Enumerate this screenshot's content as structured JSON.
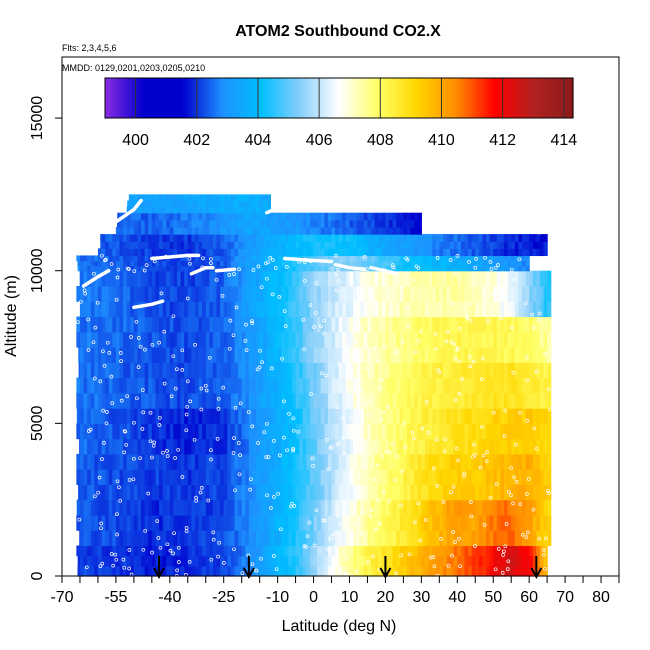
{
  "chart_data": {
    "type": "heatmap",
    "title": "ATOM2 Southbound CO2.X",
    "subtitle_flights": "Flts: 2,3,4,5,6",
    "subtitle_dates": "MMDD: 0129,0201,0203,0205,0210",
    "xlabel": "Latitude (deg N)",
    "ylabel": "Altitude (m)",
    "xlim": [
      -70,
      85
    ],
    "ylim": [
      0,
      17000
    ],
    "x_ticks": [
      -70,
      -55,
      -40,
      -25,
      -10,
      0,
      10,
      20,
      30,
      40,
      50,
      60,
      70,
      80
    ],
    "x_tick_labels": [
      "-70",
      "-55",
      "-40",
      "-25",
      "-10",
      "0",
      "10",
      "20",
      "30",
      "40",
      "50",
      "60",
      "70",
      "80"
    ],
    "x_minor_ticks": [
      -65,
      -60,
      -50,
      -45,
      -35,
      -30,
      -20,
      -15,
      -5,
      5,
      15,
      25,
      35,
      45,
      55,
      65,
      75,
      85
    ],
    "y_ticks": [
      0,
      5000,
      10000,
      15000
    ],
    "y_tick_labels": [
      "0",
      "5000",
      "10000",
      "15000"
    ],
    "colorbar": {
      "range": [
        399,
        414.3
      ],
      "tick_values": [
        400,
        402,
        404,
        406,
        408,
        410,
        412,
        414
      ],
      "tick_labels": [
        "400",
        "402",
        "404",
        "406",
        "408",
        "410",
        "412",
        "414"
      ],
      "colors": [
        "#8a2be2",
        "#0000cd",
        "#0000cd",
        "#1e90ff",
        "#00bfff",
        "#87cefa",
        "#ffffff",
        "#ffff66",
        "#ffd700",
        "#ff8c00",
        "#ff0000",
        "#b22222",
        "#8b1a1a"
      ]
    },
    "grid": false,
    "arrow_latitudes": [
      -43,
      -18,
      20,
      62
    ],
    "altitude_bands": [
      {
        "name": "0-1000 m",
        "y0": 0,
        "y1": 1000,
        "lat_range": [
          -66,
          65
        ],
        "values": [
          [
            -66,
            402.1
          ],
          [
            -55,
            402.0
          ],
          [
            -45,
            401.8
          ],
          [
            -35,
            401.9
          ],
          [
            -25,
            402.1
          ],
          [
            -18,
            402.8
          ],
          [
            -10,
            403.8
          ],
          [
            -5,
            404.5
          ],
          [
            0,
            405.5
          ],
          [
            5,
            406.5
          ],
          [
            10,
            407.5
          ],
          [
            15,
            408.2
          ],
          [
            20,
            408.8
          ],
          [
            25,
            409.3
          ],
          [
            30,
            409.8
          ],
          [
            35,
            410.3
          ],
          [
            40,
            410.7
          ],
          [
            45,
            411.2
          ],
          [
            50,
            411.8
          ],
          [
            55,
            412.5
          ],
          [
            60,
            411.8
          ],
          [
            65,
            409.5
          ]
        ]
      },
      {
        "name": "1000-2500 m",
        "y0": 1000,
        "y1": 2500,
        "lat_range": [
          -66,
          66
        ],
        "values": [
          [
            -66,
            402.3
          ],
          [
            -55,
            402.2
          ],
          [
            -45,
            401.9
          ],
          [
            -35,
            402.0
          ],
          [
            -25,
            402.2
          ],
          [
            -18,
            402.8
          ],
          [
            -10,
            403.7
          ],
          [
            -5,
            404.3
          ],
          [
            0,
            405.2
          ],
          [
            5,
            406.0
          ],
          [
            10,
            406.8
          ],
          [
            15,
            407.5
          ],
          [
            20,
            408.0
          ],
          [
            25,
            408.6
          ],
          [
            30,
            409.2
          ],
          [
            35,
            409.8
          ],
          [
            40,
            410.3
          ],
          [
            45,
            410.0
          ],
          [
            50,
            410.7
          ],
          [
            55,
            410.8
          ],
          [
            60,
            410.2
          ],
          [
            65,
            409.2
          ]
        ]
      },
      {
        "name": "2500-4000 m",
        "y0": 2500,
        "y1": 4000,
        "lat_range": [
          -66,
          66
        ],
        "values": [
          [
            -66,
            402.4
          ],
          [
            -55,
            402.2
          ],
          [
            -45,
            402.1
          ],
          [
            -35,
            402.0
          ],
          [
            -25,
            402.2
          ],
          [
            -18,
            402.8
          ],
          [
            -10,
            403.6
          ],
          [
            -5,
            404.2
          ],
          [
            0,
            405.0
          ],
          [
            5,
            405.8
          ],
          [
            10,
            406.6
          ],
          [
            15,
            407.2
          ],
          [
            20,
            407.8
          ],
          [
            25,
            408.3
          ],
          [
            30,
            408.8
          ],
          [
            35,
            409.1
          ],
          [
            40,
            409.3
          ],
          [
            45,
            409.4
          ],
          [
            50,
            409.6
          ],
          [
            55,
            409.8
          ],
          [
            60,
            409.9
          ],
          [
            65,
            409.3
          ]
        ]
      },
      {
        "name": "4000-5500 m",
        "y0": 4000,
        "y1": 5500,
        "lat_range": [
          -66,
          66
        ],
        "values": [
          [
            -66,
            402.5
          ],
          [
            -55,
            402.3
          ],
          [
            -45,
            402.0
          ],
          [
            -35,
            401.8
          ],
          [
            -25,
            402.0
          ],
          [
            -18,
            402.7
          ],
          [
            -10,
            403.6
          ],
          [
            -5,
            404.2
          ],
          [
            0,
            405.0
          ],
          [
            5,
            405.8
          ],
          [
            10,
            406.5
          ],
          [
            15,
            407.1
          ],
          [
            20,
            407.6
          ],
          [
            25,
            408.0
          ],
          [
            30,
            408.4
          ],
          [
            35,
            408.6
          ],
          [
            40,
            408.9
          ],
          [
            45,
            409.0
          ],
          [
            50,
            409.2
          ],
          [
            55,
            409.3
          ],
          [
            60,
            409.4
          ],
          [
            65,
            409.1
          ]
        ]
      },
      {
        "name": "5500-7000 m",
        "y0": 5500,
        "y1": 7000,
        "lat_range": [
          -66,
          66
        ],
        "values": [
          [
            -66,
            402.6
          ],
          [
            -55,
            402.4
          ],
          [
            -45,
            402.3
          ],
          [
            -35,
            402.2
          ],
          [
            -25,
            402.4
          ],
          [
            -18,
            402.9
          ],
          [
            -10,
            403.7
          ],
          [
            -5,
            404.4
          ],
          [
            0,
            405.2
          ],
          [
            5,
            406.0
          ],
          [
            10,
            406.7
          ],
          [
            15,
            407.2
          ],
          [
            20,
            407.6
          ],
          [
            25,
            407.9
          ],
          [
            30,
            408.2
          ],
          [
            35,
            408.4
          ],
          [
            40,
            408.5
          ],
          [
            45,
            408.6
          ],
          [
            50,
            408.7
          ],
          [
            55,
            408.8
          ],
          [
            60,
            408.6
          ],
          [
            65,
            408.3
          ]
        ]
      },
      {
        "name": "7000-8500 m",
        "y0": 7000,
        "y1": 8500,
        "lat_range": [
          -66,
          66
        ],
        "values": [
          [
            -66,
            402.6
          ],
          [
            -55,
            402.5
          ],
          [
            -45,
            402.3
          ],
          [
            -35,
            402.2
          ],
          [
            -25,
            402.4
          ],
          [
            -18,
            403.0
          ],
          [
            -10,
            403.9
          ],
          [
            -5,
            404.6
          ],
          [
            0,
            405.4
          ],
          [
            5,
            406.1
          ],
          [
            10,
            406.7
          ],
          [
            15,
            407.1
          ],
          [
            20,
            407.4
          ],
          [
            25,
            407.7
          ],
          [
            30,
            407.9
          ],
          [
            35,
            408.1
          ],
          [
            40,
            408.2
          ],
          [
            45,
            408.2
          ],
          [
            50,
            408.2
          ],
          [
            55,
            408.1
          ],
          [
            60,
            407.9
          ],
          [
            65,
            407.5
          ]
        ]
      },
      {
        "name": "8500-10000 m",
        "y0": 8500,
        "y1": 10000,
        "lat_range": [
          -66,
          66
        ],
        "values": [
          [
            -66,
            402.7
          ],
          [
            -55,
            402.5
          ],
          [
            -45,
            402.2
          ],
          [
            -35,
            402.1
          ],
          [
            -25,
            402.4
          ],
          [
            -18,
            403.2
          ],
          [
            -10,
            404.0
          ],
          [
            -5,
            404.7
          ],
          [
            0,
            405.4
          ],
          [
            5,
            406.0
          ],
          [
            10,
            406.4
          ],
          [
            15,
            406.8
          ],
          [
            20,
            407.0
          ],
          [
            25,
            407.2
          ],
          [
            30,
            407.3
          ],
          [
            35,
            407.4
          ],
          [
            40,
            407.4
          ],
          [
            45,
            407.2
          ],
          [
            50,
            406.9
          ],
          [
            55,
            406.4
          ],
          [
            60,
            405.5
          ],
          [
            65,
            404.5
          ]
        ]
      },
      {
        "name": "10000-10500 m",
        "y0": 10000,
        "y1": 10500,
        "lat_range": [
          -66,
          60
        ],
        "values": [
          [
            -66,
            402.6
          ],
          [
            -55,
            402.4
          ],
          [
            -45,
            402.2
          ],
          [
            -35,
            402.1
          ],
          [
            -25,
            402.4
          ],
          [
            -18,
            403.2
          ],
          [
            -10,
            403.9
          ],
          [
            -5,
            404.4
          ],
          [
            0,
            404.9
          ],
          [
            5,
            405.2
          ],
          [
            10,
            405.4
          ],
          [
            15,
            405.1
          ],
          [
            20,
            404.7
          ],
          [
            25,
            404.3
          ],
          [
            30,
            404.0
          ],
          [
            35,
            403.8
          ],
          [
            40,
            403.6
          ],
          [
            45,
            403.4
          ],
          [
            50,
            403.2
          ],
          [
            55,
            403.0
          ],
          [
            60,
            402.8
          ]
        ]
      },
      {
        "name": "10500-11200 m",
        "y0": 10500,
        "y1": 11200,
        "lat_range": [
          -60,
          65
        ],
        "values": [
          [
            -60,
            402.4
          ],
          [
            -55,
            402.3
          ],
          [
            -45,
            402.1
          ],
          [
            -35,
            402.0
          ],
          [
            -25,
            402.3
          ],
          [
            -18,
            403.1
          ],
          [
            -10,
            403.7
          ],
          [
            -5,
            404.0
          ],
          [
            0,
            404.2
          ],
          [
            5,
            404.3
          ],
          [
            10,
            404.1
          ],
          [
            15,
            403.8
          ],
          [
            20,
            403.5
          ],
          [
            25,
            403.2
          ],
          [
            30,
            402.9
          ],
          [
            35,
            402.7
          ],
          [
            40,
            402.5
          ],
          [
            45,
            402.3
          ],
          [
            50,
            402.1
          ],
          [
            55,
            401.9
          ],
          [
            60,
            401.8
          ],
          [
            65,
            401.7
          ]
        ]
      },
      {
        "name": "11200-11900 m",
        "y0": 11200,
        "y1": 11900,
        "lat_range": [
          -55,
          30
        ],
        "values": [
          [
            -55,
            402.5
          ],
          [
            -45,
            402.4
          ],
          [
            -35,
            402.6
          ],
          [
            -25,
            403.0
          ],
          [
            -18,
            403.4
          ],
          [
            -10,
            403.2
          ],
          [
            -5,
            403.0
          ],
          [
            0,
            402.8
          ],
          [
            5,
            402.6
          ],
          [
            10,
            402.4
          ],
          [
            15,
            402.2
          ],
          [
            20,
            402.0
          ],
          [
            25,
            401.8
          ],
          [
            30,
            401.7
          ]
        ]
      },
      {
        "name": "11900-12500 m",
        "y0": 11900,
        "y1": 12500,
        "lat_range": [
          -52,
          -12
        ],
        "values": [
          [
            -52,
            403.3
          ],
          [
            -45,
            403.2
          ],
          [
            -35,
            403.4
          ],
          [
            -25,
            403.6
          ],
          [
            -18,
            403.7
          ],
          [
            -12,
            403.6
          ]
        ]
      }
    ],
    "flight_tracks": [
      {
        "points": [
          [
            -64,
            9500
          ],
          [
            -60,
            9800
          ],
          [
            -57,
            10000
          ]
        ]
      },
      {
        "points": [
          [
            -55,
            11600
          ],
          [
            -50,
            12000
          ],
          [
            -48,
            12300
          ]
        ]
      },
      {
        "points": [
          [
            -50,
            8800
          ],
          [
            -45,
            8900
          ],
          [
            -42,
            9000
          ]
        ]
      },
      {
        "points": [
          [
            -45,
            10400
          ],
          [
            -40,
            10450
          ],
          [
            -35,
            10500
          ],
          [
            -32,
            10500
          ]
        ]
      },
      {
        "points": [
          [
            -34,
            9900
          ],
          [
            -32,
            10000
          ],
          [
            -30,
            10100
          ],
          [
            -28,
            10100
          ]
        ]
      },
      {
        "points": [
          [
            -27,
            10000
          ],
          [
            -22,
            10050
          ]
        ]
      },
      {
        "points": [
          [
            -13,
            11900
          ],
          [
            -11,
            12000
          ],
          [
            -9,
            12000
          ]
        ]
      },
      {
        "points": [
          [
            -8,
            10400
          ],
          [
            -2,
            10350
          ],
          [
            5,
            10300
          ]
        ]
      },
      {
        "points": [
          [
            6,
            10200
          ],
          [
            10,
            10100
          ],
          [
            14,
            10050
          ]
        ]
      },
      {
        "points": [
          [
            16,
            10100
          ],
          [
            20,
            10000
          ],
          [
            23,
            9900
          ]
        ]
      },
      {
        "points": [
          [
            57,
            11300
          ],
          [
            63,
            11250
          ]
        ]
      }
    ]
  }
}
